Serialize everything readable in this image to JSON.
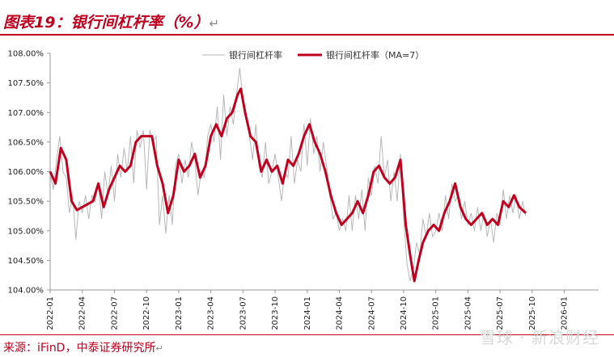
{
  "header": {
    "title": "图表19：银行间杠杆率（%）",
    "return_mark": "↵"
  },
  "footer": {
    "source": "来源：iFinD，中泰证券研究所",
    "return_mark": "↵",
    "watermark": "雪球 · 新浪财经"
  },
  "colors": {
    "accent": "#c0001f",
    "raw_line": "#b8b8b8",
    "ma_line": "#c0001f"
  },
  "chart_data": {
    "type": "line",
    "title": "银行间杠杆率（%）",
    "xlabel": "",
    "ylabel": "",
    "ylim": [
      104.0,
      108.0
    ],
    "y_ticks": [
      "104.00%",
      "104.50%",
      "105.00%",
      "105.50%",
      "106.00%",
      "106.50%",
      "107.00%",
      "107.50%",
      "108.00%"
    ],
    "x_ticks": [
      "2022-01",
      "2022-04",
      "2022-07",
      "2022-10",
      "2023-01",
      "2023-04",
      "2023-07",
      "2023-10",
      "2024-01",
      "2024-04",
      "2024-07",
      "2024-10",
      "2025-01",
      "2025-04",
      "2025-07",
      "2025-10",
      "2026-01"
    ],
    "x_range_months": [
      0,
      51.2
    ],
    "legend": {
      "placement": "top"
    },
    "series": [
      {
        "name": "银行间杠杆率",
        "style": "thin-gray",
        "points": [
          [
            0,
            105.95
          ],
          [
            0.3,
            105.7
          ],
          [
            0.6,
            106.2
          ],
          [
            0.9,
            106.6
          ],
          [
            1.2,
            106.0
          ],
          [
            1.5,
            105.9
          ],
          [
            1.8,
            105.3
          ],
          [
            2.1,
            105.6
          ],
          [
            2.4,
            104.85
          ],
          [
            2.7,
            105.5
          ],
          [
            3.0,
            105.3
          ],
          [
            3.3,
            105.6
          ],
          [
            3.6,
            105.2
          ],
          [
            3.9,
            105.6
          ],
          [
            4.2,
            105.5
          ],
          [
            4.5,
            105.8
          ],
          [
            4.8,
            105.2
          ],
          [
            5.1,
            106.0
          ],
          [
            5.4,
            105.6
          ],
          [
            5.7,
            106.1
          ],
          [
            6.0,
            105.5
          ],
          [
            6.3,
            106.3
          ],
          [
            6.6,
            105.9
          ],
          [
            6.9,
            106.4
          ],
          [
            7.2,
            106.0
          ],
          [
            7.5,
            106.6
          ],
          [
            7.8,
            105.8
          ],
          [
            8.1,
            106.7
          ],
          [
            8.4,
            106.4
          ],
          [
            8.7,
            106.7
          ],
          [
            9.0,
            105.7
          ],
          [
            9.3,
            106.7
          ],
          [
            9.6,
            106.5
          ],
          [
            9.9,
            106.6
          ],
          [
            10.2,
            105.1
          ],
          [
            10.5,
            105.6
          ],
          [
            10.8,
            104.95
          ],
          [
            11.1,
            105.6
          ],
          [
            11.4,
            105.1
          ],
          [
            11.7,
            106.1
          ],
          [
            12.0,
            106.3
          ],
          [
            12.3,
            105.8
          ],
          [
            12.6,
            106.2
          ],
          [
            12.9,
            105.9
          ],
          [
            13.2,
            106.5
          ],
          [
            13.5,
            106.2
          ],
          [
            13.8,
            105.6
          ],
          [
            14.1,
            106.0
          ],
          [
            14.4,
            105.9
          ],
          [
            14.7,
            106.6
          ],
          [
            15.0,
            106.8
          ],
          [
            15.3,
            106.5
          ],
          [
            15.6,
            107.1
          ],
          [
            15.9,
            106.2
          ],
          [
            16.2,
            107.3
          ],
          [
            16.5,
            106.6
          ],
          [
            16.8,
            107.1
          ],
          [
            17.1,
            106.8
          ],
          [
            17.4,
            107.3
          ],
          [
            17.7,
            107.75
          ],
          [
            18.0,
            107.2
          ],
          [
            18.3,
            107.0
          ],
          [
            18.6,
            106.6
          ],
          [
            18.9,
            106.2
          ],
          [
            19.2,
            106.8
          ],
          [
            19.5,
            106.1
          ],
          [
            19.8,
            105.9
          ],
          [
            20.1,
            106.5
          ],
          [
            20.4,
            105.8
          ],
          [
            20.7,
            106.0
          ],
          [
            21.0,
            106.3
          ],
          [
            21.3,
            105.9
          ],
          [
            21.6,
            105.5
          ],
          [
            21.9,
            106.0
          ],
          [
            22.2,
            105.9
          ],
          [
            22.5,
            106.6
          ],
          [
            22.8,
            105.8
          ],
          [
            23.1,
            106.2
          ],
          [
            23.4,
            106.0
          ],
          [
            23.7,
            106.8
          ],
          [
            24.0,
            106.1
          ],
          [
            24.3,
            106.9
          ],
          [
            24.6,
            106.3
          ],
          [
            24.9,
            106.6
          ],
          [
            25.2,
            106.0
          ],
          [
            25.5,
            106.5
          ],
          [
            25.8,
            106.1
          ],
          [
            26.1,
            105.6
          ],
          [
            26.4,
            105.2
          ],
          [
            26.7,
            105.3
          ],
          [
            27.0,
            105.0
          ],
          [
            27.3,
            105.2
          ],
          [
            27.6,
            105.0
          ],
          [
            27.9,
            105.6
          ],
          [
            28.2,
            105.0
          ],
          [
            28.5,
            105.6
          ],
          [
            28.8,
            105.2
          ],
          [
            29.1,
            105.7
          ],
          [
            29.4,
            105.0
          ],
          [
            29.7,
            105.9
          ],
          [
            30.0,
            105.6
          ],
          [
            30.3,
            106.1
          ],
          [
            30.6,
            105.8
          ],
          [
            30.9,
            106.6
          ],
          [
            31.2,
            105.9
          ],
          [
            31.5,
            106.2
          ],
          [
            31.8,
            105.5
          ],
          [
            32.1,
            106.0
          ],
          [
            32.4,
            105.5
          ],
          [
            32.7,
            106.3
          ],
          [
            33.0,
            105.2
          ],
          [
            33.3,
            104.45
          ],
          [
            33.6,
            104.15
          ],
          [
            33.9,
            104.35
          ],
          [
            34.2,
            104.8
          ],
          [
            34.5,
            104.6
          ],
          [
            34.8,
            105.2
          ],
          [
            35.1,
            104.9
          ],
          [
            35.4,
            105.3
          ],
          [
            35.7,
            104.9
          ],
          [
            36.0,
            105.0
          ],
          [
            36.3,
            105.3
          ],
          [
            36.6,
            105.0
          ],
          [
            36.9,
            105.6
          ],
          [
            37.2,
            105.2
          ],
          [
            37.5,
            105.8
          ],
          [
            37.8,
            105.5
          ],
          [
            38.1,
            105.6
          ],
          [
            38.4,
            105.2
          ],
          [
            38.7,
            105.5
          ],
          [
            39.0,
            105.1
          ],
          [
            39.3,
            105.3
          ],
          [
            39.6,
            105.0
          ],
          [
            39.9,
            105.4
          ],
          [
            40.2,
            105.0
          ],
          [
            40.5,
            105.3
          ],
          [
            40.8,
            104.9
          ],
          [
            41.1,
            105.2
          ],
          [
            41.4,
            104.8
          ],
          [
            41.7,
            105.3
          ],
          [
            42.0,
            105.1
          ],
          [
            42.3,
            105.7
          ],
          [
            42.6,
            105.2
          ],
          [
            42.9,
            105.6
          ],
          [
            43.2,
            105.3
          ],
          [
            43.5,
            105.6
          ],
          [
            43.8,
            105.2
          ],
          [
            44.1,
            105.5
          ],
          [
            44.4,
            105.25
          ]
        ]
      },
      {
        "name": "银行间杠杆率（MA=7）",
        "style": "thick-red",
        "points": [
          [
            0,
            106.0
          ],
          [
            0.5,
            105.8
          ],
          [
            1.0,
            106.4
          ],
          [
            1.5,
            106.2
          ],
          [
            2.0,
            105.5
          ],
          [
            2.5,
            105.35
          ],
          [
            3.0,
            105.4
          ],
          [
            3.5,
            105.45
          ],
          [
            4.0,
            105.5
          ],
          [
            4.5,
            105.8
          ],
          [
            5.0,
            105.4
          ],
          [
            5.5,
            105.7
          ],
          [
            6.0,
            105.9
          ],
          [
            6.5,
            106.1
          ],
          [
            7.0,
            106.0
          ],
          [
            7.5,
            106.1
          ],
          [
            8.0,
            106.5
          ],
          [
            8.5,
            106.6
          ],
          [
            9.0,
            106.6
          ],
          [
            9.5,
            106.6
          ],
          [
            10.0,
            106.1
          ],
          [
            10.5,
            105.8
          ],
          [
            11.0,
            105.3
          ],
          [
            11.5,
            105.6
          ],
          [
            12.0,
            106.2
          ],
          [
            12.5,
            106.0
          ],
          [
            13.0,
            106.1
          ],
          [
            13.5,
            106.3
          ],
          [
            14.0,
            105.9
          ],
          [
            14.5,
            106.1
          ],
          [
            15.0,
            106.6
          ],
          [
            15.5,
            106.8
          ],
          [
            16.0,
            106.6
          ],
          [
            16.5,
            106.9
          ],
          [
            17.0,
            107.0
          ],
          [
            17.5,
            107.3
          ],
          [
            17.8,
            107.4
          ],
          [
            18.2,
            107.0
          ],
          [
            18.7,
            106.6
          ],
          [
            19.2,
            106.5
          ],
          [
            19.7,
            106.0
          ],
          [
            20.2,
            106.2
          ],
          [
            20.7,
            106.0
          ],
          [
            21.2,
            106.1
          ],
          [
            21.7,
            105.8
          ],
          [
            22.2,
            106.2
          ],
          [
            22.7,
            106.1
          ],
          [
            23.2,
            106.3
          ],
          [
            23.7,
            106.6
          ],
          [
            24.2,
            106.8
          ],
          [
            24.7,
            106.5
          ],
          [
            25.2,
            106.3
          ],
          [
            25.7,
            106.0
          ],
          [
            26.2,
            105.6
          ],
          [
            26.7,
            105.3
          ],
          [
            27.2,
            105.1
          ],
          [
            27.7,
            105.2
          ],
          [
            28.2,
            105.3
          ],
          [
            28.7,
            105.5
          ],
          [
            29.2,
            105.3
          ],
          [
            29.7,
            105.6
          ],
          [
            30.2,
            106.0
          ],
          [
            30.7,
            106.1
          ],
          [
            31.2,
            105.9
          ],
          [
            31.7,
            105.8
          ],
          [
            32.2,
            105.9
          ],
          [
            32.7,
            106.2
          ],
          [
            33.2,
            105.1
          ],
          [
            33.6,
            104.6
          ],
          [
            34.0,
            104.15
          ],
          [
            34.4,
            104.5
          ],
          [
            34.8,
            104.8
          ],
          [
            35.3,
            105.0
          ],
          [
            35.8,
            105.1
          ],
          [
            36.3,
            105.0
          ],
          [
            36.8,
            105.3
          ],
          [
            37.3,
            105.5
          ],
          [
            37.8,
            105.8
          ],
          [
            38.3,
            105.4
          ],
          [
            38.8,
            105.2
          ],
          [
            39.3,
            105.1
          ],
          [
            39.8,
            105.2
          ],
          [
            40.3,
            105.3
          ],
          [
            40.8,
            105.1
          ],
          [
            41.3,
            105.2
          ],
          [
            41.8,
            105.1
          ],
          [
            42.3,
            105.5
          ],
          [
            42.8,
            105.4
          ],
          [
            43.3,
            105.6
          ],
          [
            43.8,
            105.4
          ],
          [
            44.4,
            105.3
          ]
        ]
      }
    ]
  }
}
